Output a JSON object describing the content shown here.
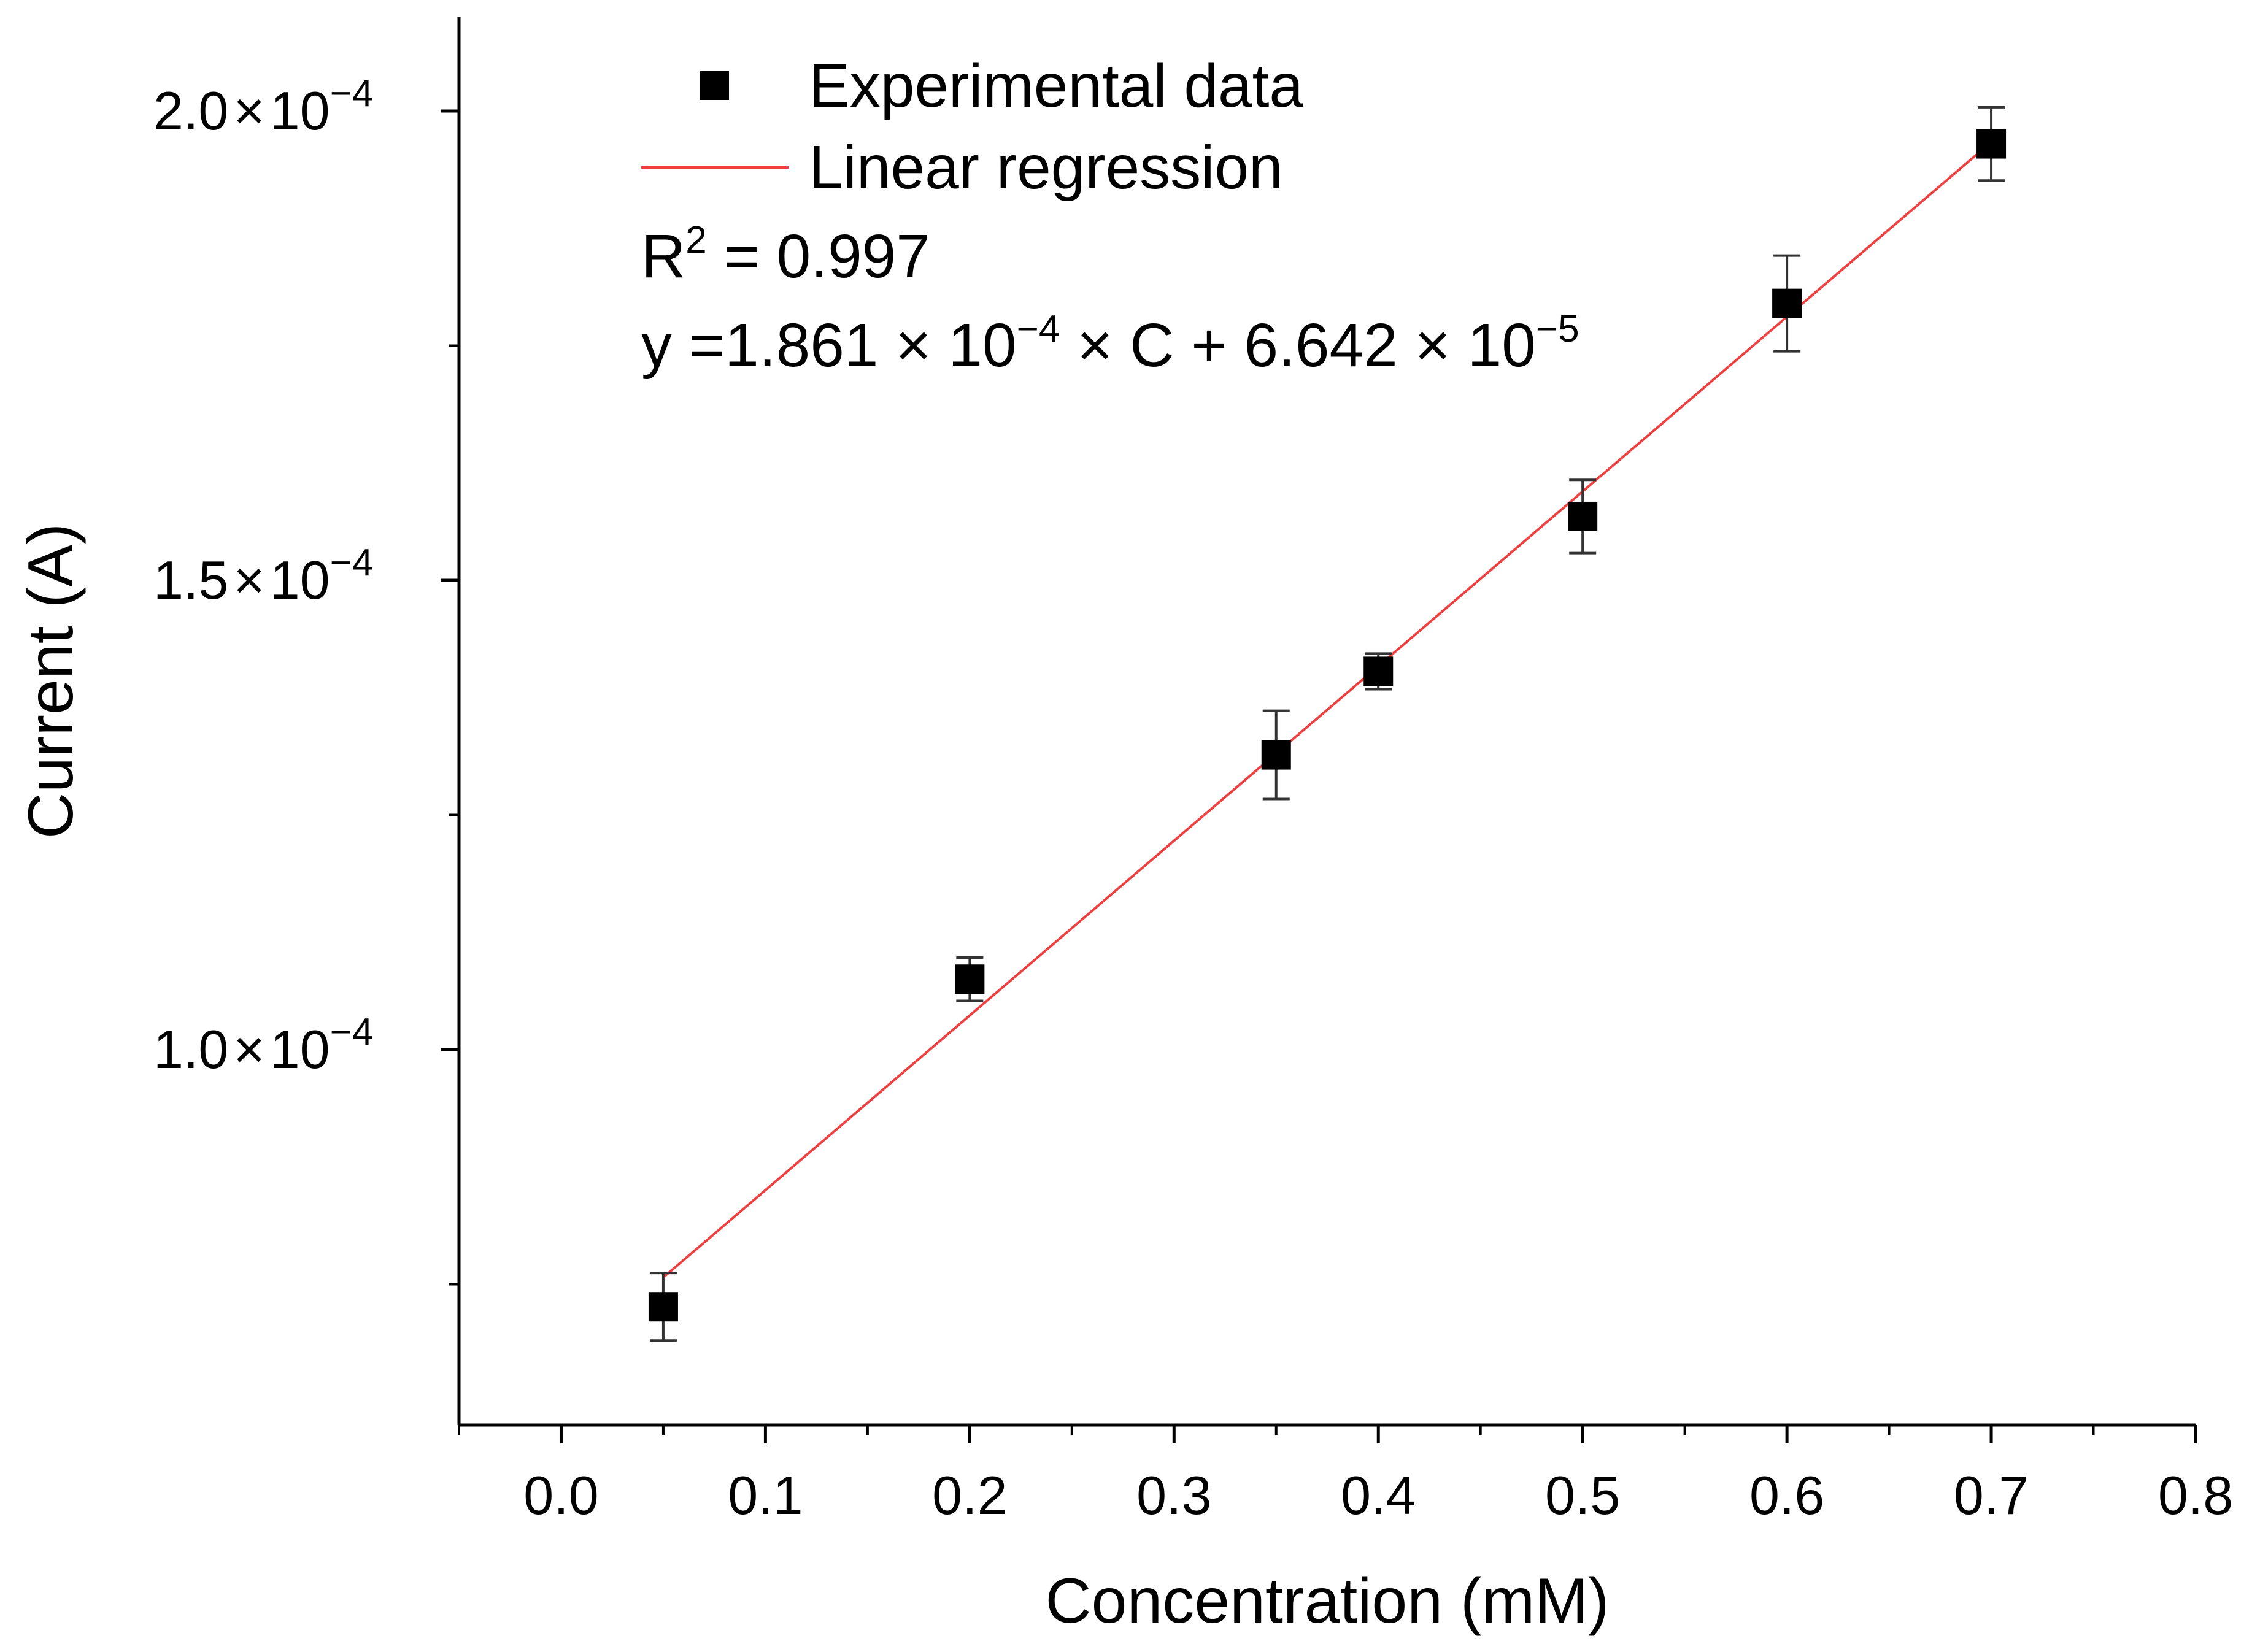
{
  "chart_data": {
    "type": "scatter",
    "xlabel": "Concentration (mM)",
    "ylabel": "Current (A)",
    "xlim": [
      -0.05,
      0.8
    ],
    "ylim": [
      6e-05,
      0.00021
    ],
    "x_ticks": [
      {
        "value": 0.0,
        "label": "0.0"
      },
      {
        "value": 0.1,
        "label": "0.1"
      },
      {
        "value": 0.2,
        "label": "0.2"
      },
      {
        "value": 0.3,
        "label": "0.3"
      },
      {
        "value": 0.4,
        "label": "0.4"
      },
      {
        "value": 0.5,
        "label": "0.5"
      },
      {
        "value": 0.6,
        "label": "0.6"
      },
      {
        "value": 0.7,
        "label": "0.7"
      },
      {
        "value": 0.8,
        "label": "0.8"
      }
    ],
    "y_major_ticks": [
      {
        "value": 0.0001,
        "mantissa": "1.0",
        "times": "×",
        "base": "10",
        "exponent": "−4"
      },
      {
        "value": 0.00015,
        "mantissa": "1.5",
        "times": "×",
        "base": "10",
        "exponent": "−4"
      },
      {
        "value": 0.0002,
        "mantissa": "2.0",
        "times": "×",
        "base": "10",
        "exponent": "−4"
      }
    ],
    "y_minor_ticks": [
      7.5e-05,
      0.000125,
      0.000175
    ],
    "series": [
      {
        "name": "Experimental data",
        "marker": "square",
        "color": "#000000",
        "x": [
          0.05,
          0.2,
          0.35,
          0.4,
          0.5,
          0.6,
          0.7
        ],
        "y": [
          7.26e-05,
          0.0001075,
          0.0001314,
          0.0001403,
          0.0001568,
          0.0001795,
          0.0001965
        ],
        "error": [
          3.6e-06,
          2.3e-06,
          4.7e-06,
          1.9e-06,
          3.9e-06,
          5.1e-06,
          3.9e-06
        ]
      },
      {
        "name": "Linear regression",
        "type": "line",
        "color": "#ee4040",
        "slope": 0.0001861,
        "intercept": 6.642e-05,
        "x_range": [
          0.05,
          0.7
        ]
      }
    ],
    "legend": {
      "placement": "top-left",
      "items": [
        "Experimental data",
        "Linear regression"
      ]
    },
    "annotations": {
      "r2_label": "R",
      "r2_exponent": "2",
      "r2_value": " = 0.997",
      "eq_start": "y =1.861 × 10",
      "eq_exp1": "−4",
      "eq_mid": " × C + 6.642 × 10",
      "eq_exp2": "−5"
    }
  }
}
